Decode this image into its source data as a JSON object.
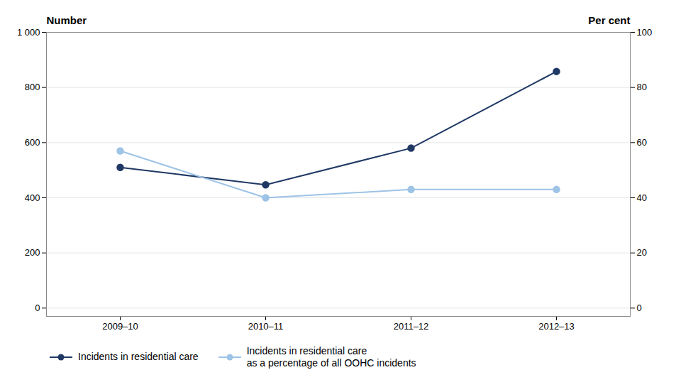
{
  "chart_data": {
    "type": "line",
    "categories": [
      "2009–10",
      "2010–11",
      "2011–12",
      "2012–13"
    ],
    "series": [
      {
        "name": "Incidents in residential care",
        "color": "#1f3864",
        "marker": "circle",
        "values": [
          510,
          447,
          580,
          858
        ]
      },
      {
        "name": "Incidents in residential care\nas a percentage of all OOHC incidents",
        "color": "#9dc3e6",
        "marker": "circle",
        "axis": "y2",
        "values": [
          57,
          40,
          43,
          43
        ]
      }
    ],
    "ylabel": "Number",
    "y2label": "Per cent",
    "ylim": [
      -30,
      1000
    ],
    "yticks": [
      0,
      200,
      400,
      600,
      800,
      {
        "value": 1000,
        "label": "1 000"
      }
    ],
    "y2lim": [
      -3,
      100
    ],
    "y2ticks": [
      0,
      20,
      40,
      60,
      80,
      100
    ],
    "grid": true,
    "legend": "lower left"
  }
}
